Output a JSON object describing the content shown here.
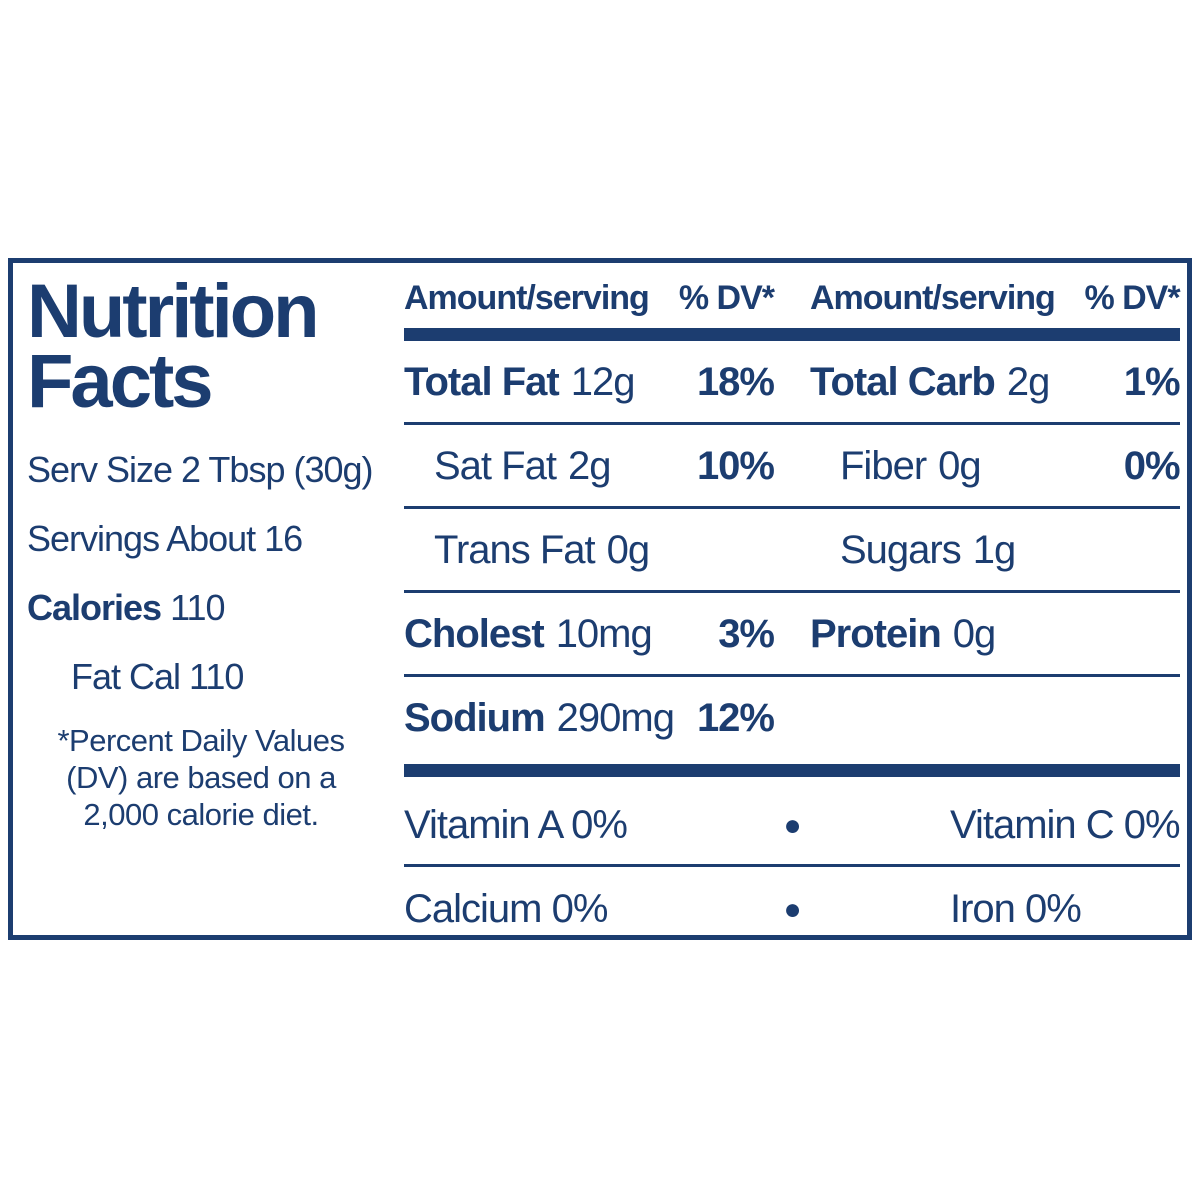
{
  "colors": {
    "ink": "#1c3d70",
    "background": "#ffffff"
  },
  "panel": {
    "title_line1": "Nutrition",
    "title_line2": "Facts",
    "serv_size": "Serv Size 2 Tbsp (30g)",
    "servings": "Servings About 16",
    "calories_label": "Calories",
    "calories_value": "110",
    "fat_cal": "Fat Cal 110",
    "footnote": {
      "line1": "*Percent Daily Values",
      "line2": "(DV) are based on a",
      "line3": "2,000 calorie diet."
    }
  },
  "table": {
    "header": {
      "amount_left": "Amount/serving",
      "dv_left": "% DV*",
      "amount_right": "Amount/serving",
      "dv_right": "% DV*"
    },
    "rows": [
      {
        "left": {
          "name": "Total Fat",
          "value": "12g",
          "dv": "18%"
        },
        "right": {
          "name": "Total Carb",
          "value": "2g",
          "dv": "1%"
        }
      },
      {
        "left": {
          "name": "Sat Fat",
          "value": "2g",
          "dv": "10%"
        },
        "right": {
          "name": "Fiber",
          "value": "0g",
          "dv": "0%"
        }
      },
      {
        "left": {
          "name": "Trans Fat",
          "value": "0g",
          "dv": ""
        },
        "right": {
          "name": "Sugars",
          "value": "1g",
          "dv": ""
        }
      },
      {
        "left": {
          "name": "Cholest",
          "value": "10mg",
          "dv": "3%"
        },
        "right": {
          "name": "Protein",
          "value": "0g",
          "dv": ""
        }
      },
      {
        "left": {
          "name": "Sodium",
          "value": "290mg",
          "dv": "12%"
        },
        "right": {
          "name": "",
          "value": "",
          "dv": ""
        }
      }
    ],
    "vitamins": {
      "bullet": "●",
      "rows": [
        {
          "left": "Vitamin A 0%",
          "right": "Vitamin C 0%"
        },
        {
          "left": "Calcium 0%",
          "right": "Iron 0%"
        }
      ]
    }
  }
}
